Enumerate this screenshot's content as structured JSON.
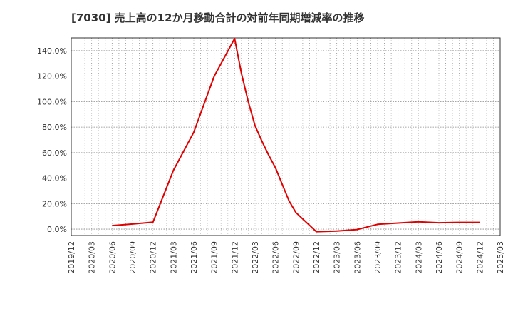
{
  "title": "[7030]  売上高の12か月移動合計の対前年同期増減率の推移",
  "colors": {
    "line": "#e00000",
    "grid": "#888888",
    "axis": "#333333",
    "background": "#ffffff"
  },
  "chart_data": {
    "type": "line",
    "title": "[7030]  売上高の12か月移動合計の対前年同期増減率の推移",
    "xlabel": "",
    "ylabel": "",
    "ylim": [
      -5,
      150
    ],
    "y_ticks": [
      0,
      20,
      40,
      60,
      80,
      100,
      120,
      140
    ],
    "y_tick_labels": [
      "0.0%",
      "20.0%",
      "40.0%",
      "60.0%",
      "80.0%",
      "100.0%",
      "120.0%",
      "140.0%"
    ],
    "x_tick_labels": [
      "2019/12",
      "2020/03",
      "2020/06",
      "2020/09",
      "2020/12",
      "2021/03",
      "2021/06",
      "2021/09",
      "2021/12",
      "2022/03",
      "2022/06",
      "2022/09",
      "2022/12",
      "2023/03",
      "2023/06",
      "2023/09",
      "2023/12",
      "2024/03",
      "2024/06",
      "2024/09",
      "2024/12",
      "2025/03"
    ],
    "grid": true,
    "legend": "none",
    "series": [
      {
        "points": [
          [
            "2020/06",
            2.8
          ],
          [
            "2020/09",
            4.0
          ],
          [
            "2020/12",
            5.5
          ],
          [
            "2021/03",
            46.0
          ],
          [
            "2021/06",
            76.0
          ],
          [
            "2021/09",
            120.0
          ],
          [
            "2021/12",
            149.5
          ],
          [
            "2022/01",
            122.0
          ],
          [
            "2022/02",
            100.0
          ],
          [
            "2022/03",
            81.0
          ],
          [
            "2022/04",
            69.0
          ],
          [
            "2022/05",
            58.0
          ],
          [
            "2022/06",
            48.0
          ],
          [
            "2022/07",
            35.0
          ],
          [
            "2022/08",
            22.0
          ],
          [
            "2022/09",
            13.0
          ],
          [
            "2022/12",
            -2.0
          ],
          [
            "2023/03",
            -1.5
          ],
          [
            "2023/06",
            -0.3
          ],
          [
            "2023/09",
            3.8
          ],
          [
            "2023/12",
            4.8
          ],
          [
            "2024/03",
            5.8
          ],
          [
            "2024/06",
            5.0
          ],
          [
            "2024/09",
            5.3
          ],
          [
            "2024/12",
            5.3
          ]
        ]
      }
    ]
  }
}
